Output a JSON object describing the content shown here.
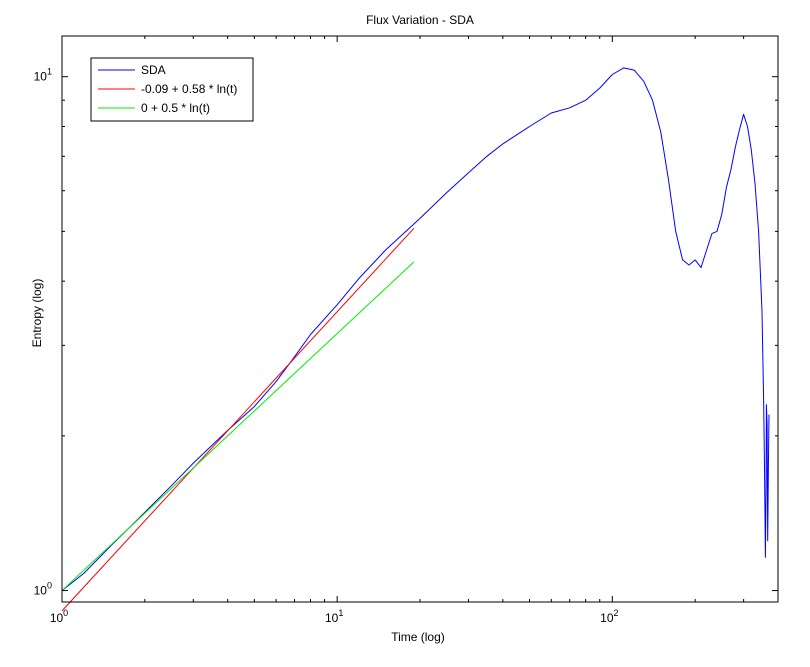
{
  "chart_data": {
    "type": "line",
    "title": "Flux Variation - SDA",
    "xlabel": "Time (log)",
    "ylabel": "Entropy (log)",
    "xscale": "log",
    "yscale": "log",
    "xlim": [
      1,
      400
    ],
    "ylim": [
      0.95,
      12
    ],
    "x_ticks": [
      {
        "value": 1,
        "base": "10",
        "exp": "0"
      },
      {
        "value": 10,
        "base": "10",
        "exp": "1"
      },
      {
        "value": 100,
        "base": "10",
        "exp": "2"
      }
    ],
    "y_ticks": [
      {
        "value": 1,
        "base": "10",
        "exp": "0"
      },
      {
        "value": 10,
        "base": "10",
        "exp": "1"
      }
    ],
    "grid": false,
    "legend_position": "top-left",
    "series": [
      {
        "name": "SDA",
        "color": "#0000ff",
        "points": [
          [
            1.0,
            1.0
          ],
          [
            1.2,
            1.08
          ],
          [
            1.5,
            1.22
          ],
          [
            2.0,
            1.42
          ],
          [
            2.5,
            1.6
          ],
          [
            3.0,
            1.77
          ],
          [
            4.0,
            2.05
          ],
          [
            5.0,
            2.28
          ],
          [
            6.0,
            2.55
          ],
          [
            7.0,
            2.85
          ],
          [
            8.0,
            3.15
          ],
          [
            10.0,
            3.6
          ],
          [
            12.0,
            4.05
          ],
          [
            15.0,
            4.6
          ],
          [
            20.0,
            5.3
          ],
          [
            25.0,
            5.95
          ],
          [
            30.0,
            6.5
          ],
          [
            35.0,
            7.0
          ],
          [
            40.0,
            7.4
          ],
          [
            50.0,
            8.0
          ],
          [
            60.0,
            8.5
          ],
          [
            70.0,
            8.7
          ],
          [
            80.0,
            9.0
          ],
          [
            90.0,
            9.5
          ],
          [
            100.0,
            10.1
          ],
          [
            110.0,
            10.4
          ],
          [
            120.0,
            10.3
          ],
          [
            130.0,
            9.8
          ],
          [
            140.0,
            9.0
          ],
          [
            150.0,
            7.8
          ],
          [
            160.0,
            6.3
          ],
          [
            170.0,
            5.0
          ],
          [
            180.0,
            4.4
          ],
          [
            190.0,
            4.3
          ],
          [
            200.0,
            4.4
          ],
          [
            210.0,
            4.25
          ],
          [
            220.0,
            4.6
          ],
          [
            230.0,
            4.95
          ],
          [
            240.0,
            5.0
          ],
          [
            250.0,
            5.4
          ],
          [
            260.0,
            6.1
          ],
          [
            270.0,
            6.6
          ],
          [
            280.0,
            7.3
          ],
          [
            290.0,
            7.9
          ],
          [
            300.0,
            8.45
          ],
          [
            310.0,
            8.0
          ],
          [
            320.0,
            7.2
          ],
          [
            330.0,
            6.2
          ],
          [
            340.0,
            5.0
          ],
          [
            350.0,
            3.5
          ],
          [
            355.0,
            2.3
          ],
          [
            358.0,
            1.6
          ],
          [
            360.0,
            1.16
          ],
          [
            362.0,
            1.6
          ],
          [
            363.0,
            2.3
          ],
          [
            365.0,
            2.1
          ],
          [
            367.0,
            1.25
          ],
          [
            369.0,
            1.75
          ],
          [
            371.0,
            2.2
          ]
        ]
      },
      {
        "name": "-0.09 + 0.58 * ln(t)",
        "color": "#ff0000",
        "points": [
          [
            1.0,
            0.913
          ],
          [
            19.0,
            5.07
          ]
        ]
      },
      {
        "name": "0 + 0.5 * ln(t)",
        "color": "#00ee00",
        "points": [
          [
            1.0,
            1.0
          ],
          [
            19.0,
            4.36
          ]
        ]
      }
    ]
  }
}
